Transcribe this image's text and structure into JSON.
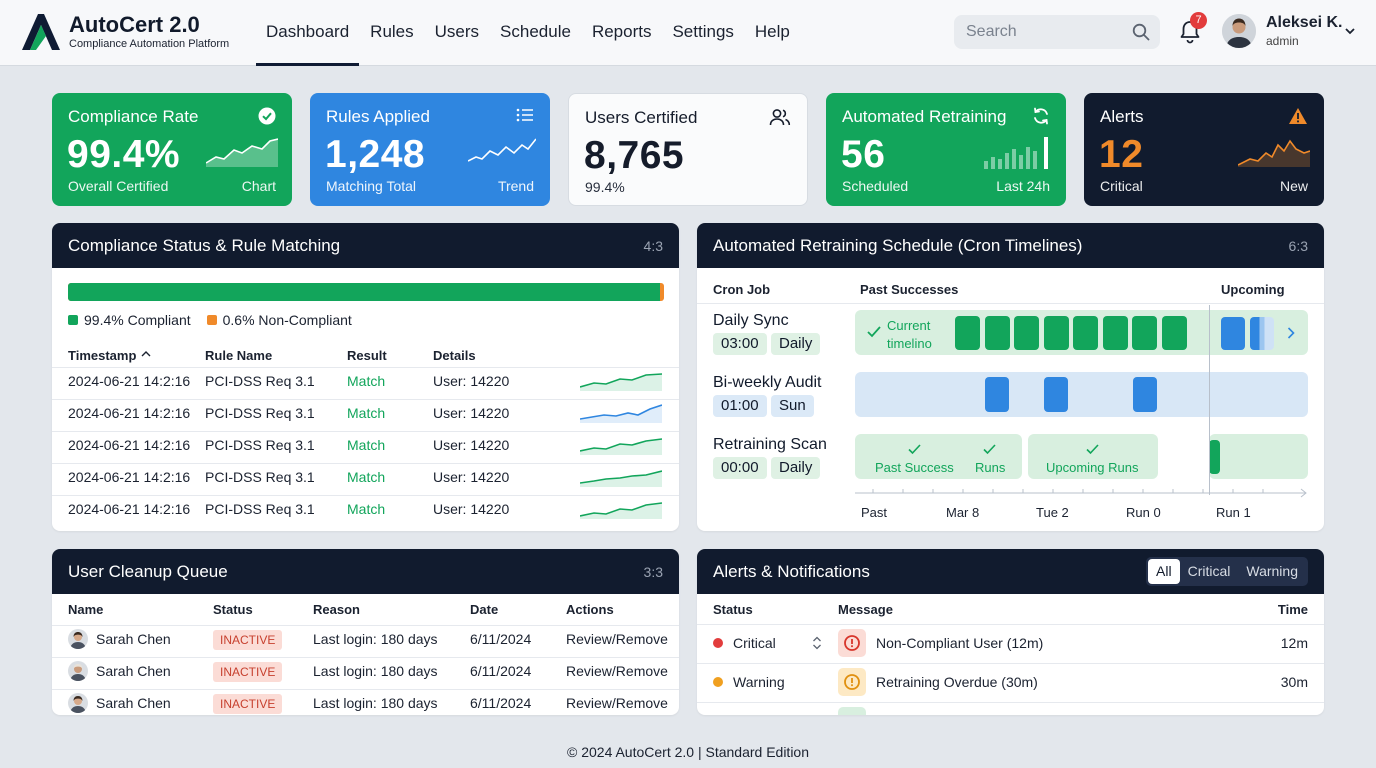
{
  "app": {
    "title": "AutoCert 2.0",
    "subtitle": "Compliance Automation Platform"
  },
  "nav": [
    {
      "label": "Dashboard",
      "active": true
    },
    {
      "label": "Rules"
    },
    {
      "label": "Users"
    },
    {
      "label": "Schedule"
    },
    {
      "label": "Reports"
    },
    {
      "label": "Settings"
    },
    {
      "label": "Help"
    }
  ],
  "search": {
    "placeholder": "Search"
  },
  "notifications": {
    "count": "7"
  },
  "user": {
    "name": "Aleksei K.",
    "role": "admin"
  },
  "kpis": [
    {
      "title": "Compliance Rate",
      "value": "99.4%",
      "sub": "Overall Certified",
      "tag": "Chart",
      "icon": "check-circle-icon"
    },
    {
      "title": "Rules Applied",
      "value": "1,248",
      "sub": "Matching Total",
      "tag": "Trend",
      "icon": "list-icon"
    },
    {
      "title": "Users Certified",
      "value": "8,765",
      "sub": "99.4%",
      "tag": "",
      "icon": "users-icon"
    },
    {
      "title": "Automated Retraining",
      "value": "56",
      "sub": "Scheduled",
      "tag": "Last 24h",
      "icon": "refresh-icon"
    },
    {
      "title": "Alerts",
      "value": "12",
      "sub": "Critical",
      "tag": "New",
      "icon": "warning-icon"
    }
  ],
  "compliance": {
    "title": "Compliance Status & Rule Matching",
    "ratio": "4:3",
    "compliant_pct": 99.4,
    "legend_compliant": "99.4% Compliant",
    "legend_noncompliant": "0.6% Non-Compliant",
    "columns": [
      "Timestamp",
      "Rule Name",
      "Result",
      "Details"
    ],
    "rows": [
      {
        "timestamp": "2024-06-21 14:2:16",
        "rule": "PCI-DSS Req 3.1",
        "result": "Match",
        "details": "User: 14220"
      },
      {
        "timestamp": "2024-06-21 14:2:16",
        "rule": "PCI-DSS Req 3.1",
        "result": "Match",
        "details": "User: 14220"
      },
      {
        "timestamp": "2024-06-21 14:2:16",
        "rule": "PCI-DSS Req 3.1",
        "result": "Match",
        "details": "User: 14220"
      },
      {
        "timestamp": "2024-06-21 14:2:16",
        "rule": "PCI-DSS Req 3.1",
        "result": "Match",
        "details": "User: 14220"
      },
      {
        "timestamp": "2024-06-21 14:2:16",
        "rule": "PCI-DSS Req 3.1",
        "result": "Match",
        "details": "User: 14220"
      }
    ]
  },
  "schedule": {
    "title": "Automated Retraining Schedule (Cron Timelines)",
    "ratio": "6:3",
    "col_job": "Cron Job",
    "col_past": "Past Successes",
    "col_upcoming": "Upcoming",
    "jobs": [
      {
        "name": "Daily Sync",
        "time": "03:00",
        "freq": "Daily"
      },
      {
        "name": "Bi-weekly Audit",
        "time": "01:00",
        "freq": "Sun"
      },
      {
        "name": "Retraining Scan",
        "time": "00:00",
        "freq": "Daily"
      }
    ],
    "current_label_1": "Current",
    "current_label_2": "timelino",
    "past_success": "Past Success",
    "runs": "Runs",
    "upcoming_runs": "Upcoming Runs",
    "axis": [
      "Past",
      "Mar 8",
      "Tue 2",
      "Run 0",
      "Run 1"
    ]
  },
  "cleanup": {
    "title": "User Cleanup Queue",
    "ratio": "3:3",
    "columns": [
      "Name",
      "Status",
      "Reason",
      "Date",
      "Actions"
    ],
    "rows": [
      {
        "name": "Sarah Chen",
        "status": "INACTIVE",
        "reason": "Last login: 180 days",
        "date": "6/11/2024",
        "action": "Review/Remove"
      },
      {
        "name": "Sarah Chen",
        "status": "INACTIVE",
        "reason": "Last login: 180 days",
        "date": "6/11/2024",
        "action": "Review/Remove"
      },
      {
        "name": "Sarah Chen",
        "status": "INACTIVE",
        "reason": "Last login: 180 days",
        "date": "6/11/2024",
        "action": "Review/Remove"
      }
    ]
  },
  "alerts": {
    "title": "Alerts & Notifications",
    "filters": [
      "All",
      "Critical",
      "Warning"
    ],
    "active_filter": "All",
    "columns": [
      "Status",
      "Message",
      "Time"
    ],
    "rows": [
      {
        "status": "Critical",
        "message": "Non-Compliant User (12m)",
        "time": "12m",
        "color": "#e23c3c"
      },
      {
        "status": "Warning",
        "message": "Retraining Overdue (30m)",
        "time": "30m",
        "color": "#f0a020"
      }
    ]
  },
  "footer": "© 2024 AutoCert 2.0 | Standard Edition"
}
